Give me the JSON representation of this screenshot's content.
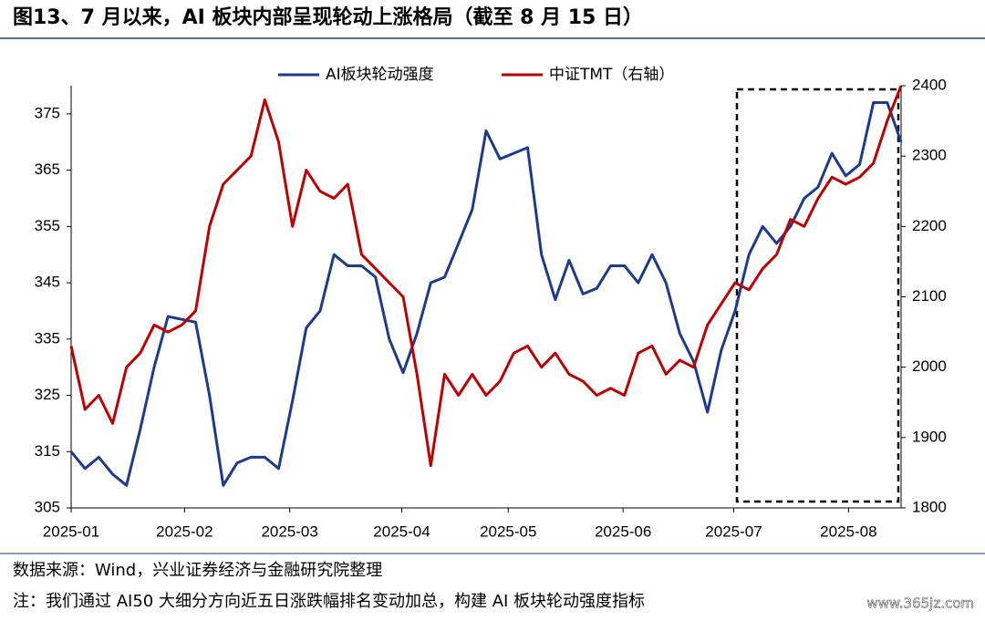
{
  "chart_data": {
    "type": "line",
    "title": "图13、7 月以来，AI 板块内部呈现轮动上涨格局（截至 8 月 15 日）",
    "x": [
      0,
      1,
      2,
      3,
      4,
      5,
      6,
      7,
      8,
      9,
      10,
      11,
      12,
      13,
      14,
      15,
      16,
      17,
      18,
      19,
      20,
      21,
      22,
      23,
      24,
      25,
      26,
      27,
      28,
      29,
      30,
      31,
      32,
      33,
      34,
      35,
      36,
      37,
      38,
      39,
      40,
      41,
      42,
      43,
      44,
      45,
      46,
      47,
      48,
      49,
      50,
      51,
      52,
      53,
      54,
      55,
      56,
      57,
      58,
      59,
      60
    ],
    "xlim": [
      0,
      60
    ],
    "xticks": [
      {
        "value": 0,
        "label": "2025-01"
      },
      {
        "value": 8.2,
        "label": "2025-02"
      },
      {
        "value": 15.8,
        "label": "2025-03"
      },
      {
        "value": 23.9,
        "label": "2025-04"
      },
      {
        "value": 31.6,
        "label": "2025-05"
      },
      {
        "value": 39.9,
        "label": "2025-06"
      },
      {
        "value": 47.9,
        "label": "2025-07"
      },
      {
        "value": 56.2,
        "label": "2025-08"
      }
    ],
    "ylim": [
      305,
      380
    ],
    "yticks": [
      305,
      315,
      325,
      335,
      345,
      355,
      365,
      375
    ],
    "y2lim": [
      1800,
      2400
    ],
    "y2ticks": [
      1800,
      1900,
      2000,
      2100,
      2200,
      2300,
      2400
    ],
    "series": [
      {
        "name": "AI板块轮动强度",
        "color": "#1c3b8f",
        "values": [
          315,
          312,
          314,
          311,
          309,
          319,
          330,
          339,
          338.5,
          338,
          325,
          309,
          313,
          314,
          314,
          312,
          324,
          337,
          340,
          350,
          348,
          348,
          346,
          335,
          329,
          336,
          345,
          346,
          352,
          358,
          372,
          367,
          368,
          369,
          350,
          342,
          349,
          343,
          344,
          348,
          348,
          345,
          350,
          345,
          336,
          331,
          322,
          333,
          340,
          350,
          355,
          352,
          355,
          360,
          362,
          368,
          364,
          366,
          377,
          377,
          370
        ]
      },
      {
        "name": "中证TMT（右轴）",
        "color": "#c00000",
        "axis": "y2",
        "values": [
          2030,
          1940,
          1960,
          1920,
          2000,
          2020,
          2060,
          2050,
          2060,
          2080,
          2200,
          2260,
          2280,
          2300,
          2380,
          2320,
          2200,
          2280,
          2250,
          2240,
          2260,
          2160,
          2140,
          2120,
          2100,
          1990,
          1860,
          1990,
          1960,
          1990,
          1960,
          1980,
          2020,
          2030,
          2000,
          2020,
          1990,
          1980,
          1960,
          1970,
          1960,
          2020,
          2030,
          1990,
          2010,
          2000,
          2060,
          2090,
          2120,
          2110,
          2140,
          2160,
          2210,
          2200,
          2240,
          2270,
          2260,
          2270,
          2290,
          2350,
          2400
        ]
      }
    ],
    "source": "数据来源：Wind，兴业证券经济与金融研究院整理",
    "note": "注：我们通过 AI50 大细分方向近五日涨跌幅排名变动加总，构建 AI 板块轮动强度指标",
    "watermark": "www.365jz.com"
  }
}
